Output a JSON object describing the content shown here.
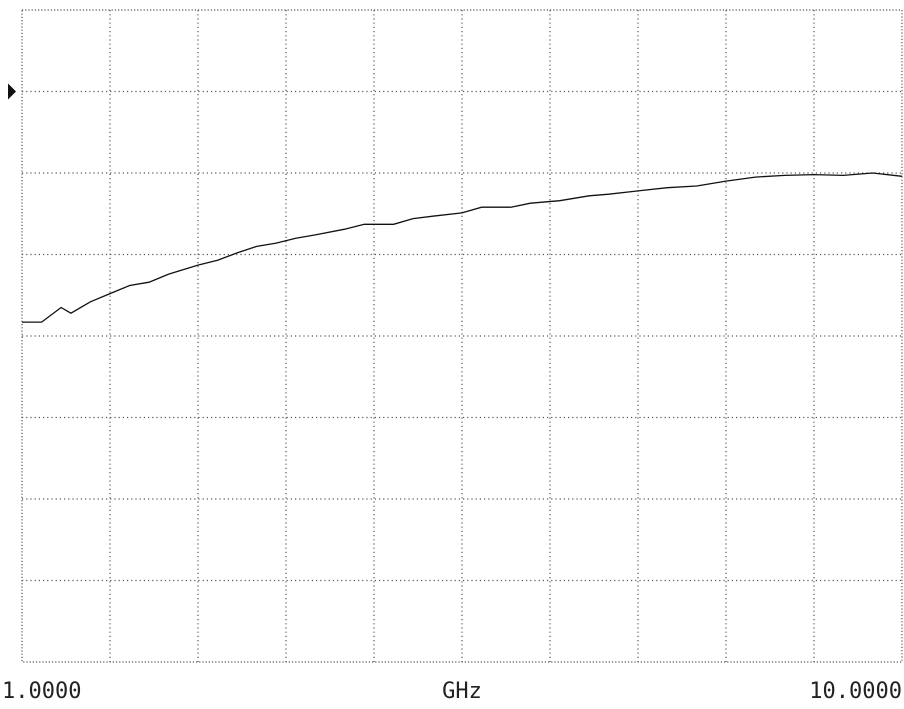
{
  "chart_data": {
    "type": "line",
    "x_label": "GHz",
    "x": [
      1.0,
      1.2,
      1.4,
      1.5,
      1.7,
      1.9,
      2.1,
      2.3,
      2.5,
      2.8,
      3.0,
      3.2,
      3.4,
      3.6,
      3.8,
      4.0,
      4.3,
      4.5,
      4.8,
      5.0,
      5.2,
      5.5,
      5.7,
      6.0,
      6.2,
      6.5,
      6.8,
      7.0,
      7.3,
      7.6,
      7.9,
      8.2,
      8.5,
      8.8,
      9.1,
      9.4,
      9.7,
      10.0
    ],
    "series": [
      {
        "color": "#111111",
        "values": [
          4.17,
          4.17,
          4.35,
          4.28,
          4.42,
          4.52,
          4.62,
          4.66,
          4.76,
          4.87,
          4.93,
          5.02,
          5.1,
          5.14,
          5.2,
          5.24,
          5.31,
          5.37,
          5.37,
          5.44,
          5.47,
          5.51,
          5.58,
          5.58,
          5.63,
          5.66,
          5.72,
          5.74,
          5.78,
          5.82,
          5.84,
          5.9,
          5.95,
          5.97,
          5.98,
          5.97,
          6.0,
          5.96
        ]
      }
    ],
    "xlim": [
      1,
      10
    ],
    "xticks": [
      {
        "value": 1,
        "label": "1.0000"
      },
      {
        "value": 10,
        "label": "10.0000"
      }
    ],
    "xgrid": [
      1.9,
      2.8,
      3.7,
      4.6,
      5.5,
      6.4,
      7.3,
      8.2,
      9.1
    ],
    "ylim": [
      0,
      8
    ],
    "yticks": [
      1,
      2,
      3,
      4,
      5,
      6,
      7
    ],
    "reference": 7,
    "grid": true
  }
}
